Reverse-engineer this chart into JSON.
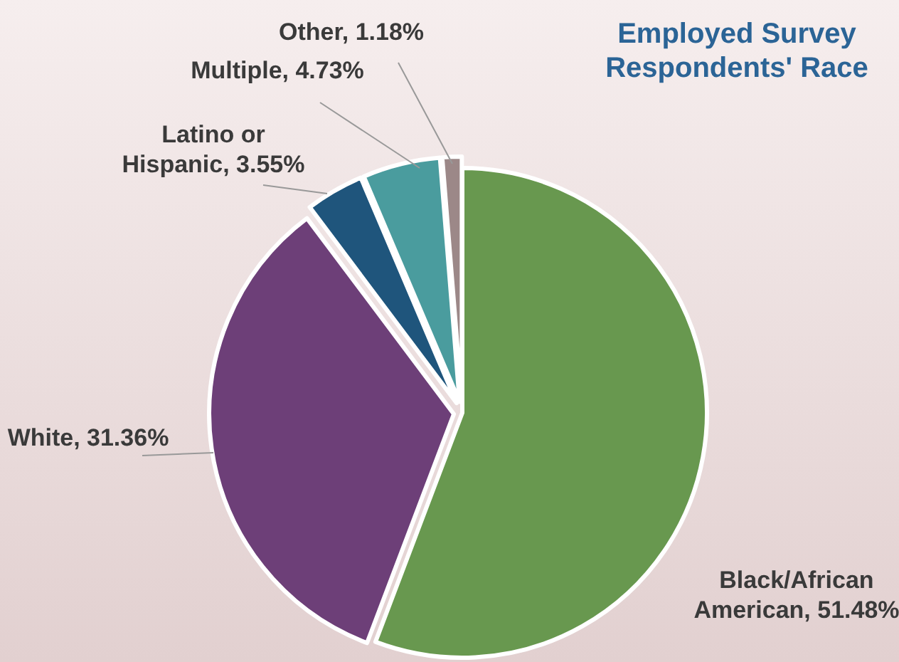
{
  "chart_data": {
    "type": "pie",
    "title": "Employed Survey Respondents' Race",
    "categories": [
      "Black/African American",
      "White ",
      "Latino or Hispanic",
      "Multiple",
      "Other"
    ],
    "values": [
      51.48,
      31.36,
      3.55,
      4.73,
      1.18
    ],
    "colors": [
      "#68984f",
      "#6d3f78",
      "#1f557c",
      "#4a9c9e",
      "#9c8888"
    ],
    "value_labels": [
      "51.48%",
      "31.36%",
      "3.55%",
      "4.73%",
      "1.18%"
    ]
  }
}
